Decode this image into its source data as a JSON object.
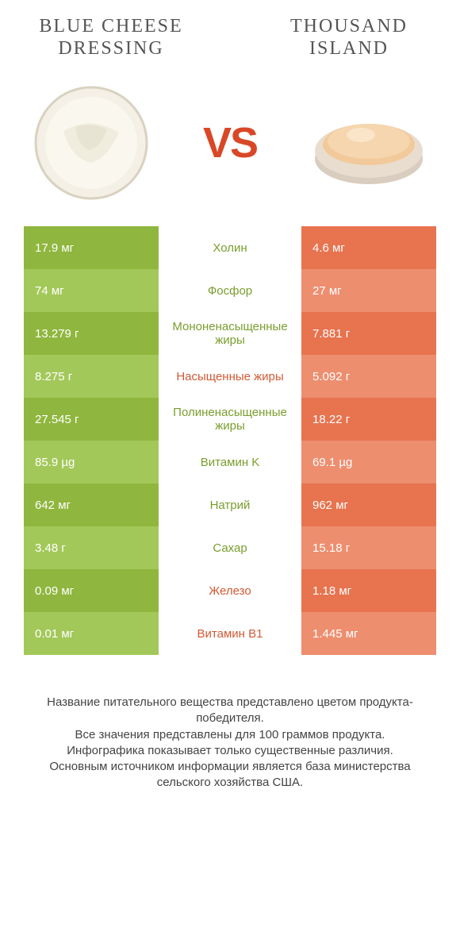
{
  "colors": {
    "green_dark": "#8fb63e",
    "green_light": "#a3c85a",
    "orange_dark": "#e7734f",
    "orange_light": "#ed8e6f",
    "mid_green_text": "#7a9e2e",
    "mid_red_text": "#d25a36",
    "vs_color": "#d94826",
    "background": "#ffffff"
  },
  "header": {
    "left_title": "BLUE CHEESE DRESSING",
    "right_title": "THOUSAND ISLAND",
    "vs": "VS"
  },
  "rows": [
    {
      "left": "17.9 мг",
      "mid": "Холин",
      "mid_color": "green",
      "right": "4.6 мг"
    },
    {
      "left": "74 мг",
      "mid": "Фосфор",
      "mid_color": "green",
      "right": "27 мг"
    },
    {
      "left": "13.279 г",
      "mid": "Мононенасыщенные жиры",
      "mid_color": "green",
      "right": "7.881 г"
    },
    {
      "left": "8.275 г",
      "mid": "Насыщенные жиры",
      "mid_color": "red",
      "right": "5.092 г"
    },
    {
      "left": "27.545 г",
      "mid": "Полиненасыщенные жиры",
      "mid_color": "green",
      "right": "18.22 г"
    },
    {
      "left": "85.9 µg",
      "mid": "Витамин K",
      "mid_color": "green",
      "right": "69.1 µg"
    },
    {
      "left": "642 мг",
      "mid": "Натрий",
      "mid_color": "green",
      "right": "962 мг"
    },
    {
      "left": "3.48 г",
      "mid": "Сахар",
      "mid_color": "green",
      "right": "15.18 г"
    },
    {
      "left": "0.09 мг",
      "mid": "Железо",
      "mid_color": "red",
      "right": "1.18 мг"
    },
    {
      "left": "0.01 мг",
      "mid": "Витамин B1",
      "mid_color": "red",
      "right": "1.445 мг"
    }
  ],
  "footer": {
    "line1": "Название питательного вещества представлено цветом продукта-победителя.",
    "line2": "Все значения представлены для 100 граммов продукта.",
    "line3": "Инфографика показывает только существенные различия.",
    "line4": "Основным источником информации является база министерства сельского хозяйства США."
  }
}
